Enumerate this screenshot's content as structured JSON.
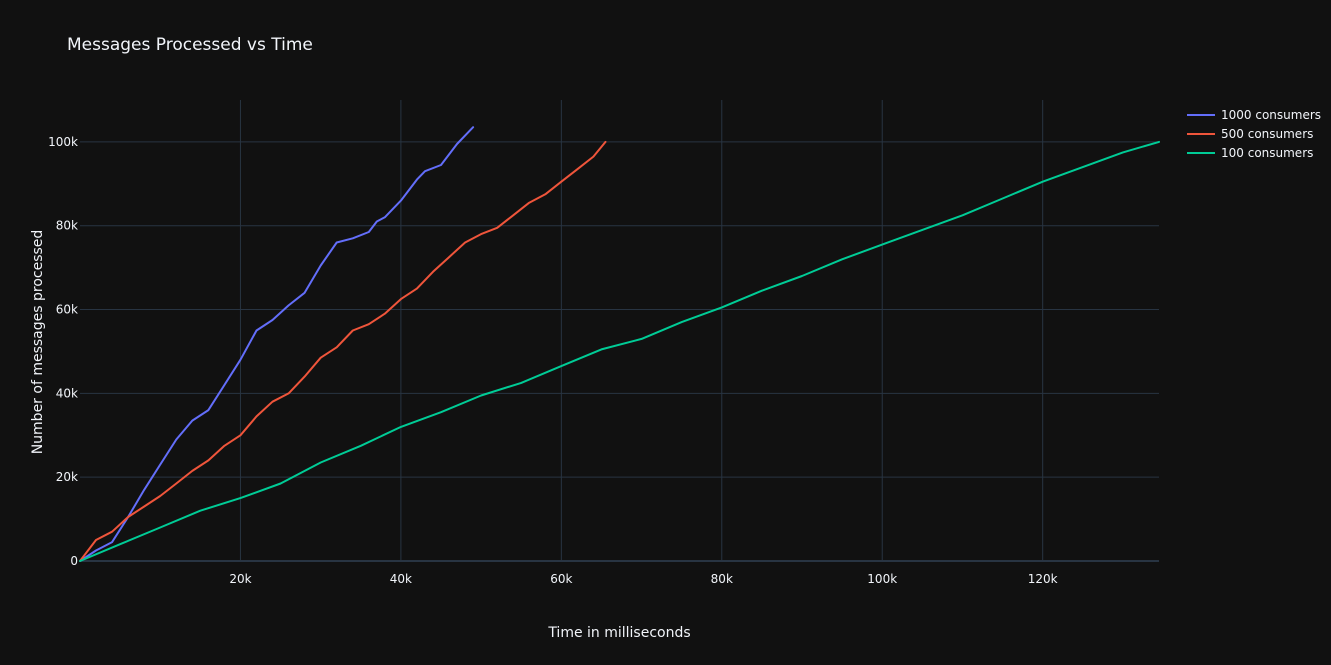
{
  "chart_data": {
    "type": "line",
    "title": "Messages Processed vs Time",
    "xlabel": "Time in milliseconds",
    "ylabel": "Number of messages processed",
    "xlim": [
      0,
      134500
    ],
    "ylim": [
      0,
      110000
    ],
    "x_ticks": [
      {
        "value": 20000,
        "label": "20k"
      },
      {
        "value": 40000,
        "label": "40k"
      },
      {
        "value": 60000,
        "label": "60k"
      },
      {
        "value": 80000,
        "label": "80k"
      },
      {
        "value": 100000,
        "label": "100k"
      },
      {
        "value": 120000,
        "label": "120k"
      }
    ],
    "y_ticks": [
      {
        "value": 0,
        "label": "0"
      },
      {
        "value": 20000,
        "label": "20k"
      },
      {
        "value": 40000,
        "label": "40k"
      },
      {
        "value": 60000,
        "label": "60k"
      },
      {
        "value": 80000,
        "label": "80k"
      },
      {
        "value": 100000,
        "label": "100k"
      }
    ],
    "grid": true,
    "legend_position": "top-right",
    "series": [
      {
        "name": "1000 consumers",
        "color": "#636efa",
        "x": [
          0,
          2000,
          4000,
          6000,
          8000,
          10000,
          12000,
          14000,
          16000,
          18000,
          20000,
          22000,
          24000,
          26000,
          28000,
          30000,
          32000,
          34000,
          36000,
          37000,
          38000,
          40000,
          42000,
          43000,
          45000,
          47000,
          49000
        ],
        "y": [
          0,
          2500,
          4500,
          10500,
          17000,
          23000,
          29000,
          33500,
          36000,
          42000,
          48000,
          55000,
          57500,
          61000,
          64000,
          70500,
          76000,
          77000,
          78500,
          81000,
          82000,
          86000,
          91000,
          93000,
          94500,
          99500,
          103500
        ]
      },
      {
        "name": "500 consumers",
        "color": "#ef553b",
        "x": [
          0,
          2000,
          4000,
          6000,
          8000,
          10000,
          12000,
          14000,
          16000,
          18000,
          20000,
          22000,
          24000,
          26000,
          28000,
          30000,
          32000,
          34000,
          36000,
          38000,
          40000,
          42000,
          44000,
          46000,
          48000,
          50000,
          52000,
          54000,
          56000,
          58000,
          60000,
          62000,
          64000,
          65500
        ],
        "y": [
          0,
          5000,
          7000,
          10500,
          13000,
          15500,
          18500,
          21500,
          24000,
          27500,
          30000,
          34500,
          38000,
          40000,
          44000,
          48500,
          51000,
          55000,
          56500,
          59000,
          62500,
          65000,
          69000,
          72500,
          76000,
          78000,
          79500,
          82500,
          85500,
          87500,
          90500,
          93500,
          96500,
          100000
        ]
      },
      {
        "name": "100 consumers",
        "color": "#00cc96",
        "x": [
          0,
          5000,
          10000,
          15000,
          20000,
          25000,
          30000,
          35000,
          40000,
          45000,
          50000,
          55000,
          60000,
          65000,
          70000,
          75000,
          80000,
          85000,
          90000,
          95000,
          100000,
          105000,
          110000,
          115000,
          120000,
          125000,
          130000,
          134500
        ],
        "y": [
          0,
          4000,
          8000,
          12000,
          15000,
          18500,
          23500,
          27500,
          32000,
          35500,
          39500,
          42500,
          46500,
          50500,
          53000,
          57000,
          60500,
          64500,
          68000,
          72000,
          75500,
          79000,
          82500,
          86500,
          90500,
          94000,
          97500,
          100000
        ]
      }
    ]
  }
}
